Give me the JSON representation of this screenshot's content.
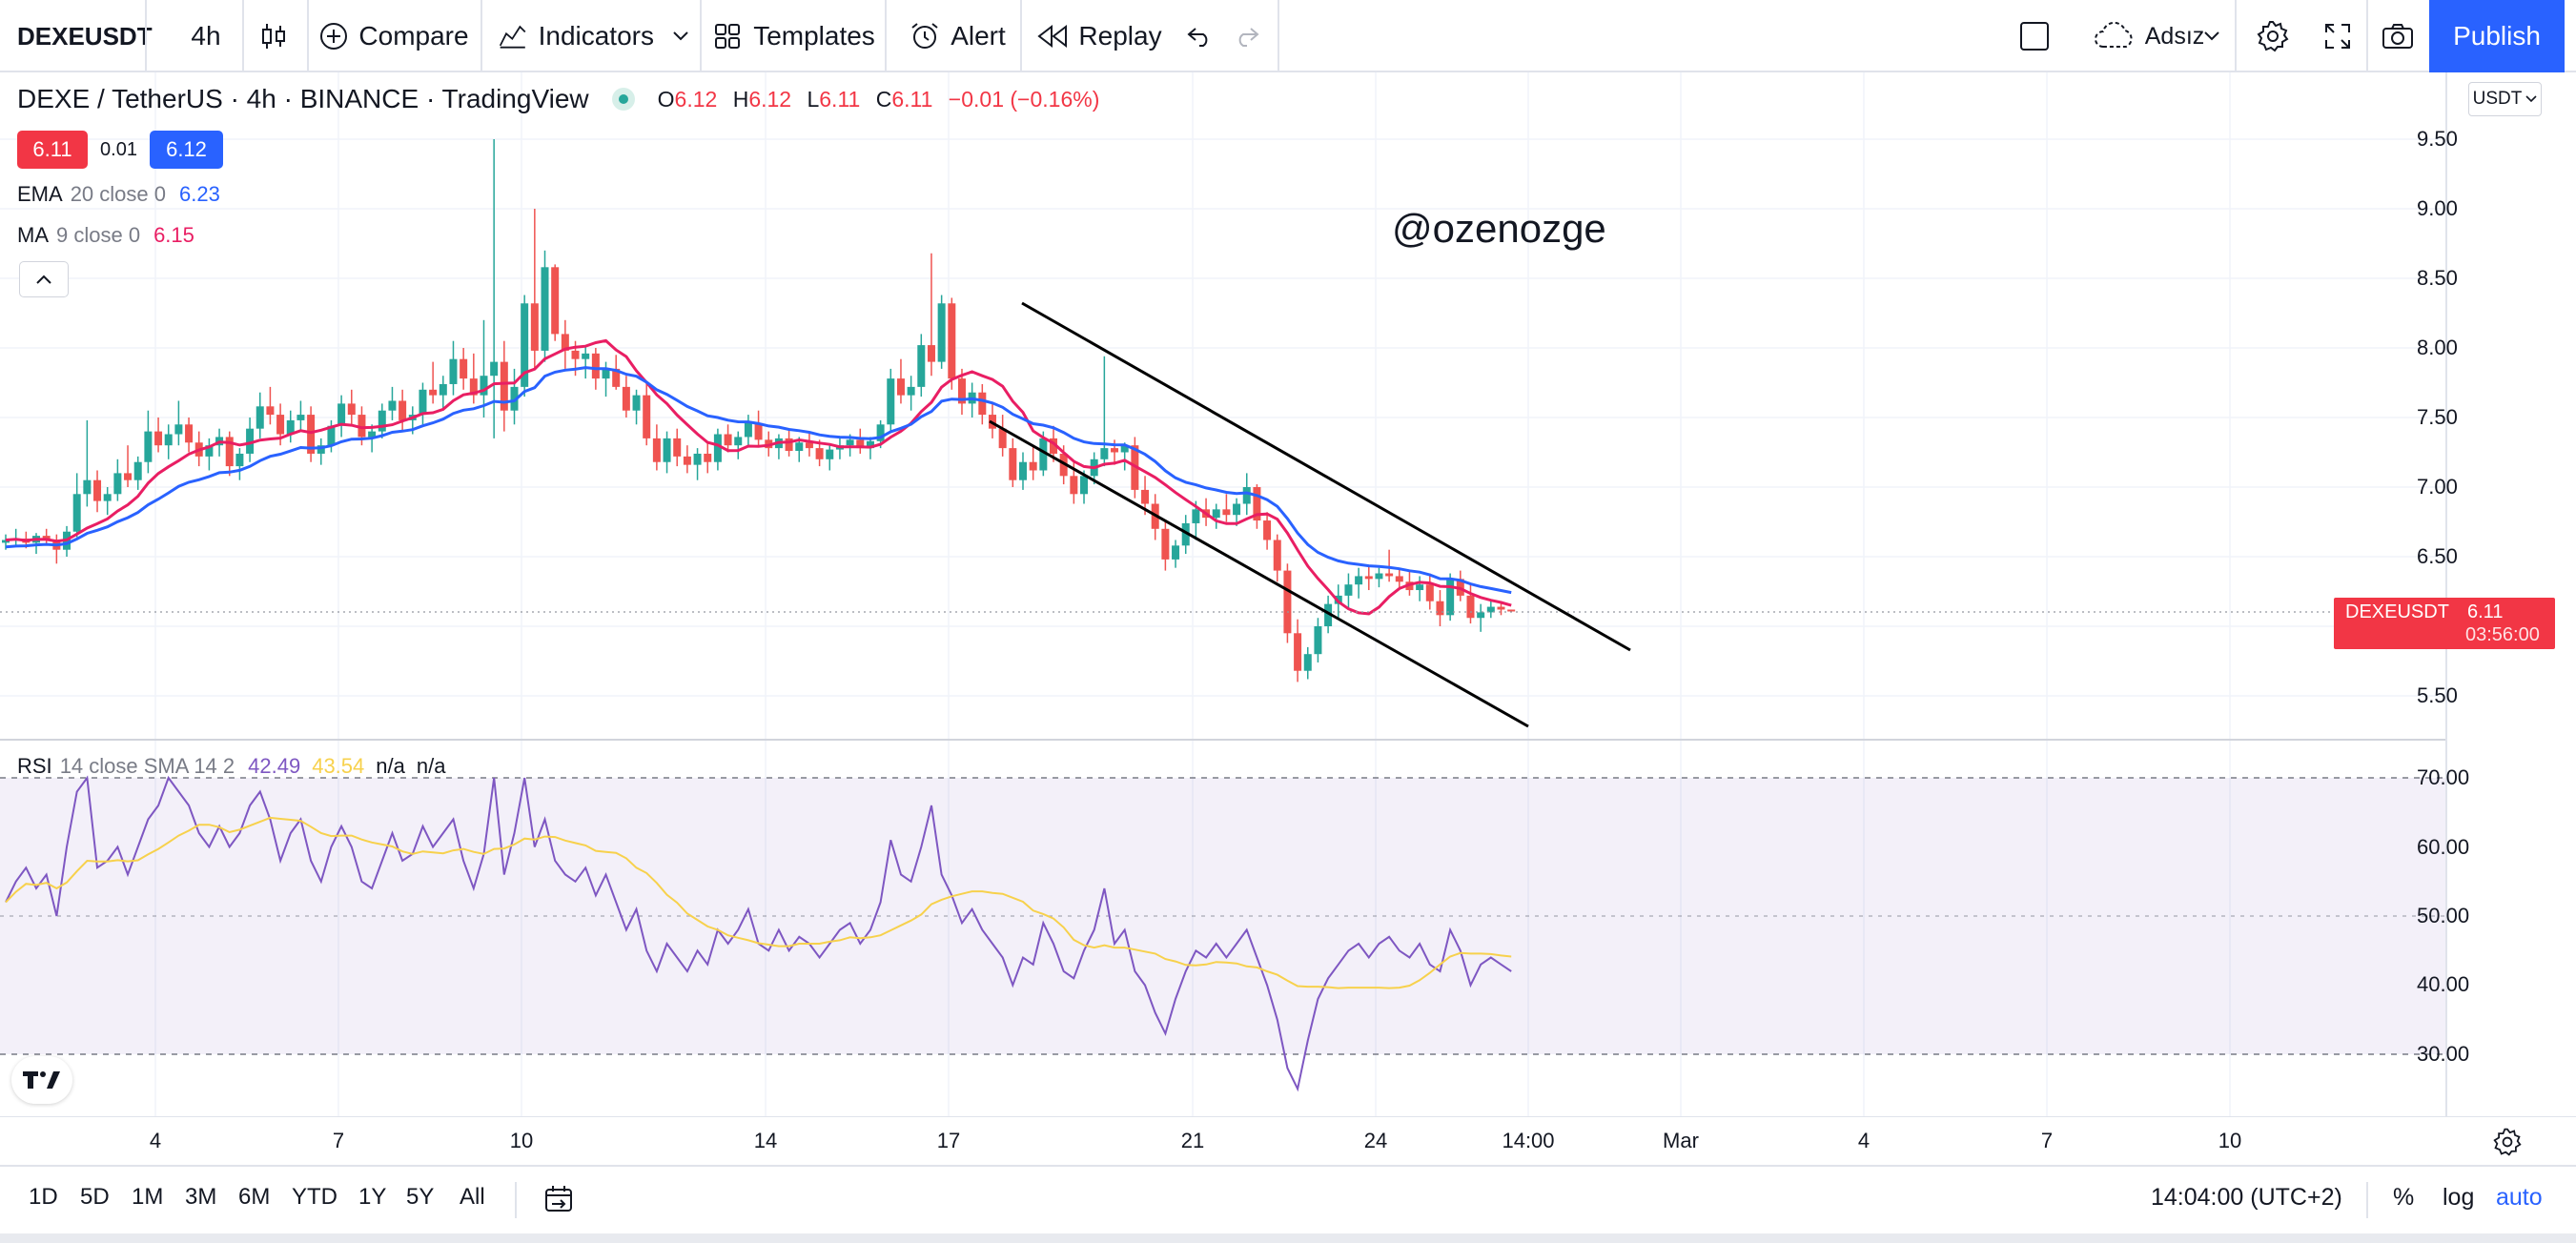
{
  "toolbar": {
    "symbol": "DEXEUSDT",
    "interval": "4h",
    "compare_label": "Compare",
    "indicators_label": "Indicators",
    "templates_label": "Templates",
    "alert_label": "Alert",
    "replay_label": "Replay",
    "layout_name": "Adsız",
    "publish_label": "Publish"
  },
  "legend": {
    "title": "DEXE / TetherUS · 4h · BINANCE · TradingView",
    "open_label": "O",
    "open": "6.12",
    "high_label": "H",
    "high": "6.12",
    "low_label": "L",
    "low": "6.11",
    "close_label": "C",
    "close": "6.11",
    "change": "−0.01 (−0.16%)",
    "bid": "6.11",
    "spread": "0.01",
    "ask": "6.12",
    "ema_name": "EMA",
    "ema_params": "20 close 0",
    "ema_value": "6.23",
    "ma_name": "MA",
    "ma_params": "9 close 0",
    "ma_value": "6.15",
    "rsi_name": "RSI",
    "rsi_params": "14 close SMA 14 2",
    "rsi_value": "42.49",
    "rsi_sma_value": "43.54",
    "rsi_na1": "n/a",
    "rsi_na2": "n/a"
  },
  "watermark": "@ozenozge",
  "price_axis": {
    "currency": "USDT",
    "labels": [
      "9.50",
      "9.00",
      "8.50",
      "8.00",
      "7.50",
      "7.00",
      "6.50",
      "5.50"
    ],
    "last_symbol": "DEXEUSDT",
    "last_price": "6.11",
    "countdown": "03:56:00"
  },
  "rsi_axis": {
    "labels": [
      "70.00",
      "60.00",
      "50.00",
      "40.00",
      "30.00"
    ]
  },
  "time_axis": {
    "labels": [
      "4",
      "7",
      "10",
      "14",
      "17",
      "21",
      "24",
      "14:00",
      "Mar",
      "4",
      "7",
      "10"
    ]
  },
  "ranges": [
    "1D",
    "5D",
    "1M",
    "3M",
    "6M",
    "YTD",
    "1Y",
    "5Y",
    "All"
  ],
  "status": {
    "time": "14:04:00 (UTC+2)",
    "percent": "%",
    "log": "log",
    "auto": "auto"
  },
  "colors": {
    "up": "#26a69a",
    "down": "#ef5350",
    "ema": "#2962ff",
    "ma": "#e91e63",
    "rsi": "#7e57c2",
    "rsi_sma": "#f7d14c",
    "accent": "#2962ff",
    "price_tag": "#f23645"
  },
  "chart_data": {
    "type": "candlestick",
    "symbol": "DEXEUSDT",
    "ohlc_4h": [
      [
        6.6,
        6.66,
        6.55,
        6.62
      ],
      [
        6.62,
        6.7,
        6.58,
        6.63
      ],
      [
        6.63,
        6.68,
        6.56,
        6.6
      ],
      [
        6.6,
        6.67,
        6.52,
        6.65
      ],
      [
        6.65,
        6.7,
        6.58,
        6.62
      ],
      [
        6.62,
        6.66,
        6.45,
        6.55
      ],
      [
        6.55,
        6.72,
        6.5,
        6.68
      ],
      [
        6.68,
        7.1,
        6.64,
        6.95
      ],
      [
        6.95,
        7.48,
        6.86,
        7.05
      ],
      [
        7.05,
        7.12,
        6.82,
        6.9
      ],
      [
        6.9,
        7.0,
        6.8,
        6.95
      ],
      [
        6.95,
        7.2,
        6.9,
        7.1
      ],
      [
        7.1,
        7.3,
        7.0,
        7.05
      ],
      [
        7.05,
        7.22,
        6.98,
        7.18
      ],
      [
        7.18,
        7.55,
        7.1,
        7.4
      ],
      [
        7.4,
        7.5,
        7.25,
        7.3
      ],
      [
        7.3,
        7.45,
        7.2,
        7.38
      ],
      [
        7.38,
        7.62,
        7.3,
        7.45
      ],
      [
        7.45,
        7.5,
        7.25,
        7.32
      ],
      [
        7.32,
        7.4,
        7.15,
        7.22
      ],
      [
        7.22,
        7.35,
        7.12,
        7.3
      ],
      [
        7.3,
        7.42,
        7.22,
        7.36
      ],
      [
        7.36,
        7.4,
        7.08,
        7.15
      ],
      [
        7.15,
        7.28,
        7.05,
        7.24
      ],
      [
        7.24,
        7.5,
        7.18,
        7.42
      ],
      [
        7.42,
        7.68,
        7.35,
        7.58
      ],
      [
        7.58,
        7.72,
        7.45,
        7.52
      ],
      [
        7.52,
        7.6,
        7.3,
        7.38
      ],
      [
        7.38,
        7.55,
        7.32,
        7.48
      ],
      [
        7.48,
        7.62,
        7.4,
        7.52
      ],
      [
        7.52,
        7.58,
        7.18,
        7.24
      ],
      [
        7.24,
        7.35,
        7.16,
        7.3
      ],
      [
        7.3,
        7.48,
        7.25,
        7.44
      ],
      [
        7.44,
        7.66,
        7.36,
        7.6
      ],
      [
        7.6,
        7.7,
        7.45,
        7.52
      ],
      [
        7.52,
        7.58,
        7.3,
        7.36
      ],
      [
        7.36,
        7.45,
        7.25,
        7.4
      ],
      [
        7.4,
        7.6,
        7.35,
        7.55
      ],
      [
        7.55,
        7.72,
        7.48,
        7.62
      ],
      [
        7.62,
        7.7,
        7.4,
        7.48
      ],
      [
        7.48,
        7.58,
        7.38,
        7.52
      ],
      [
        7.52,
        7.75,
        7.45,
        7.7
      ],
      [
        7.7,
        7.9,
        7.6,
        7.66
      ],
      [
        7.66,
        7.8,
        7.55,
        7.74
      ],
      [
        7.74,
        8.05,
        7.66,
        7.92
      ],
      [
        7.92,
        8.0,
        7.7,
        7.78
      ],
      [
        7.78,
        7.96,
        7.6,
        7.66
      ],
      [
        7.66,
        8.2,
        7.5,
        7.8
      ],
      [
        7.8,
        9.5,
        7.35,
        7.9
      ],
      [
        7.9,
        8.05,
        7.4,
        7.55
      ],
      [
        7.55,
        7.85,
        7.45,
        7.72
      ],
      [
        7.72,
        8.38,
        7.65,
        8.32
      ],
      [
        8.32,
        9.0,
        7.85,
        7.98
      ],
      [
        7.98,
        8.7,
        7.9,
        8.58
      ],
      [
        8.58,
        8.6,
        8.05,
        8.1
      ],
      [
        8.1,
        8.2,
        7.85,
        7.98
      ],
      [
        7.98,
        8.05,
        7.8,
        7.92
      ],
      [
        7.92,
        8.02,
        7.78,
        7.96
      ],
      [
        7.96,
        8.0,
        7.7,
        7.78
      ],
      [
        7.78,
        7.9,
        7.65,
        7.85
      ],
      [
        7.85,
        7.95,
        7.7,
        7.72
      ],
      [
        7.72,
        7.8,
        7.5,
        7.55
      ],
      [
        7.55,
        7.7,
        7.45,
        7.66
      ],
      [
        7.66,
        7.75,
        7.3,
        7.35
      ],
      [
        7.35,
        7.45,
        7.12,
        7.18
      ],
      [
        7.18,
        7.4,
        7.1,
        7.35
      ],
      [
        7.35,
        7.42,
        7.15,
        7.22
      ],
      [
        7.22,
        7.3,
        7.1,
        7.16
      ],
      [
        7.16,
        7.28,
        7.05,
        7.24
      ],
      [
        7.24,
        7.32,
        7.1,
        7.18
      ],
      [
        7.18,
        7.42,
        7.12,
        7.38
      ],
      [
        7.38,
        7.45,
        7.25,
        7.3
      ],
      [
        7.3,
        7.4,
        7.2,
        7.36
      ],
      [
        7.36,
        7.52,
        7.3,
        7.46
      ],
      [
        7.46,
        7.55,
        7.3,
        7.34
      ],
      [
        7.34,
        7.4,
        7.22,
        7.28
      ],
      [
        7.28,
        7.38,
        7.2,
        7.35
      ],
      [
        7.35,
        7.42,
        7.22,
        7.26
      ],
      [
        7.26,
        7.36,
        7.18,
        7.32
      ],
      [
        7.32,
        7.4,
        7.22,
        7.28
      ],
      [
        7.28,
        7.34,
        7.15,
        7.2
      ],
      [
        7.2,
        7.3,
        7.12,
        7.27
      ],
      [
        7.27,
        7.36,
        7.2,
        7.3
      ],
      [
        7.3,
        7.38,
        7.22,
        7.34
      ],
      [
        7.34,
        7.42,
        7.24,
        7.28
      ],
      [
        7.28,
        7.36,
        7.2,
        7.33
      ],
      [
        7.33,
        7.48,
        7.28,
        7.45
      ],
      [
        7.45,
        7.85,
        7.4,
        7.78
      ],
      [
        7.78,
        7.92,
        7.6,
        7.66
      ],
      [
        7.66,
        7.8,
        7.55,
        7.72
      ],
      [
        7.72,
        8.1,
        7.65,
        8.02
      ],
      [
        8.02,
        8.68,
        7.8,
        7.9
      ],
      [
        7.9,
        8.38,
        7.85,
        8.32
      ],
      [
        8.32,
        8.36,
        7.7,
        7.78
      ],
      [
        7.78,
        7.85,
        7.52,
        7.6
      ],
      [
        7.6,
        7.75,
        7.5,
        7.68
      ],
      [
        7.68,
        7.74,
        7.45,
        7.52
      ],
      [
        7.52,
        7.6,
        7.35,
        7.42
      ],
      [
        7.42,
        7.52,
        7.22,
        7.28
      ],
      [
        7.28,
        7.35,
        7.0,
        7.05
      ],
      [
        7.05,
        7.25,
        6.98,
        7.18
      ],
      [
        7.18,
        7.3,
        7.05,
        7.12
      ],
      [
        7.12,
        7.4,
        7.08,
        7.35
      ],
      [
        7.35,
        7.44,
        7.18,
        7.24
      ],
      [
        7.24,
        7.3,
        7.02,
        7.08
      ],
      [
        7.08,
        7.18,
        6.88,
        6.95
      ],
      [
        6.95,
        7.12,
        6.88,
        7.08
      ],
      [
        7.08,
        7.25,
        7.02,
        7.2
      ],
      [
        7.2,
        7.94,
        7.15,
        7.28
      ],
      [
        7.28,
        7.34,
        7.16,
        7.25
      ],
      [
        7.25,
        7.32,
        7.12,
        7.3
      ],
      [
        7.3,
        7.36,
        6.92,
        6.98
      ],
      [
        6.98,
        7.08,
        6.8,
        6.88
      ],
      [
        6.88,
        6.95,
        6.62,
        6.7
      ],
      [
        6.7,
        6.75,
        6.4,
        6.48
      ],
      [
        6.48,
        6.62,
        6.42,
        6.58
      ],
      [
        6.58,
        6.8,
        6.52,
        6.74
      ],
      [
        6.74,
        6.9,
        6.62,
        6.84
      ],
      [
        6.84,
        6.92,
        6.72,
        6.78
      ],
      [
        6.78,
        6.88,
        6.7,
        6.84
      ],
      [
        6.84,
        6.95,
        6.75,
        6.8
      ],
      [
        6.8,
        6.92,
        6.72,
        6.88
      ],
      [
        6.88,
        7.1,
        6.8,
        7.0
      ],
      [
        7.0,
        7.02,
        6.7,
        6.76
      ],
      [
        6.76,
        6.82,
        6.55,
        6.62
      ],
      [
        6.62,
        6.66,
        6.32,
        6.4
      ],
      [
        6.4,
        6.45,
        5.88,
        5.95
      ],
      [
        5.95,
        6.05,
        5.6,
        5.68
      ],
      [
        5.68,
        5.85,
        5.62,
        5.8
      ],
      [
        5.8,
        6.06,
        5.74,
        6.0
      ],
      [
        6.0,
        6.22,
        5.95,
        6.16
      ],
      [
        6.16,
        6.3,
        6.05,
        6.22
      ],
      [
        6.22,
        6.38,
        6.12,
        6.3
      ],
      [
        6.3,
        6.42,
        6.2,
        6.36
      ],
      [
        6.36,
        6.44,
        6.26,
        6.34
      ],
      [
        6.34,
        6.42,
        6.28,
        6.38
      ],
      [
        6.38,
        6.55,
        6.32,
        6.36
      ],
      [
        6.36,
        6.42,
        6.28,
        6.32
      ],
      [
        6.32,
        6.4,
        6.22,
        6.26
      ],
      [
        6.26,
        6.36,
        6.18,
        6.3
      ],
      [
        6.3,
        6.38,
        6.12,
        6.18
      ],
      [
        6.18,
        6.26,
        6.0,
        6.08
      ],
      [
        6.08,
        6.38,
        6.04,
        6.34
      ],
      [
        6.34,
        6.4,
        6.18,
        6.22
      ],
      [
        6.22,
        6.3,
        6.02,
        6.06
      ],
      [
        6.06,
        6.16,
        5.96,
        6.1
      ],
      [
        6.1,
        6.18,
        6.06,
        6.14
      ],
      [
        6.14,
        6.18,
        6.08,
        6.12
      ],
      [
        6.12,
        6.12,
        6.11,
        6.11
      ]
    ],
    "ema20_label": "EMA 20 close 0",
    "ma9_label": "MA 9 close 0",
    "rsi": [
      52,
      55,
      57,
      54,
      56,
      50,
      60,
      68,
      70,
      57,
      58,
      60,
      56,
      60,
      64,
      66,
      70,
      68,
      66,
      62,
      60,
      63,
      60,
      62,
      66,
      68,
      64,
      58,
      62,
      64,
      58,
      55,
      60,
      63,
      60,
      55,
      54,
      58,
      62,
      58,
      59,
      63,
      60,
      62,
      64,
      58,
      54,
      59,
      70,
      56,
      62,
      70,
      60,
      64,
      58,
      56,
      55,
      57,
      53,
      56,
      52,
      48,
      51,
      45,
      42,
      46,
      44,
      42,
      45,
      43,
      48,
      46,
      48,
      51,
      46,
      45,
      48,
      45,
      47,
      46,
      44,
      46,
      48,
      49,
      46,
      48,
      52,
      61,
      56,
      55,
      60,
      66,
      56,
      53,
      49,
      51,
      48,
      46,
      44,
      40,
      44,
      43,
      49,
      46,
      42,
      41,
      45,
      48,
      54,
      46,
      48,
      42,
      40,
      36,
      33,
      38,
      42,
      45,
      44,
      46,
      44,
      46,
      48,
      44,
      40,
      35,
      28,
      25,
      32,
      38,
      41,
      43,
      45,
      46,
      44,
      46,
      47,
      45,
      44,
      46,
      43,
      42,
      48,
      45,
      40,
      43,
      44,
      43,
      42
    ],
    "ylim": [
      5.5,
      9.5
    ],
    "rsi_ylim": [
      30,
      70
    ],
    "rsi_band": [
      30,
      70
    ],
    "trendlines": [
      {
        "from": [
          "17",
          8.35
        ],
        "to": [
          "26 Feb",
          5.82
        ]
      },
      {
        "from": [
          "17",
          7.5
        ],
        "to": [
          "25 Feb",
          5.0
        ]
      }
    ]
  }
}
